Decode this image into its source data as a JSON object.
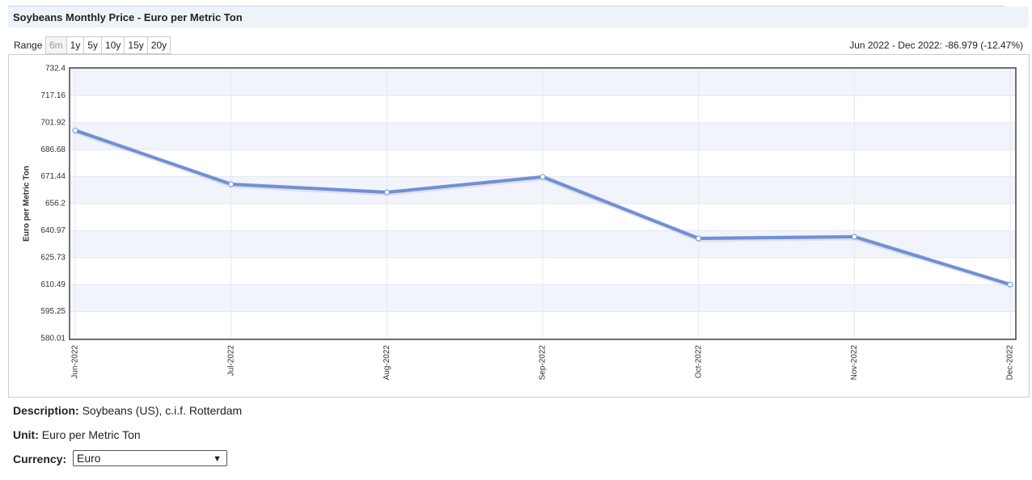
{
  "header": {
    "title": "Soybeans Monthly Price - Euro per Metric Ton"
  },
  "range": {
    "label": "Range",
    "buttons": [
      "6m",
      "1y",
      "5y",
      "10y",
      "15y",
      "20y"
    ],
    "summary": "Jun 2022 - Dec 2022: -86.979 (-12.47%)"
  },
  "chart_data": {
    "type": "line",
    "y_label": "Euro per Metric Ton",
    "categories": [
      "Jun-2022",
      "Jul-2022",
      "Aug-2022",
      "Sep-2022",
      "Oct-2022",
      "Nov-2022",
      "Dec-2022"
    ],
    "values": [
      697.52,
      667.16,
      662.6,
      671.3,
      636.6,
      637.5,
      610.54
    ],
    "color": "#6f8fd8",
    "ylim": [
      580.01,
      732.4
    ],
    "yticks": [
      580.01,
      595.25,
      610.49,
      625.73,
      640.97,
      656.2,
      671.44,
      686.68,
      701.92,
      717.16,
      732.4
    ],
    "grid": true
  },
  "details": {
    "description_label": "Description:",
    "description": "Soybeans (US), c.i.f. Rotterdam",
    "unit_label": "Unit:",
    "unit": "Euro per Metric Ton",
    "currency_label": "Currency:",
    "currency": "Euro"
  }
}
